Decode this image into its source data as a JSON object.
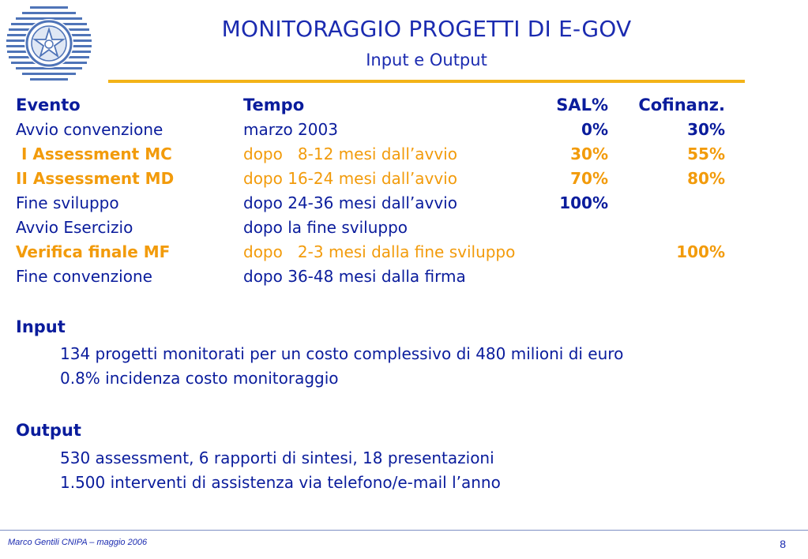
{
  "header": {
    "title": "MONITORAGGIO PROGETTI DI E-GOV",
    "subtitle": "Input e Output"
  },
  "table": {
    "headers": [
      "Evento",
      "Tempo",
      "SAL%",
      "Cofinanz."
    ],
    "rows": [
      {
        "evento": "Avvio convenzione",
        "tempo": "marzo  2003",
        "sal": "0%",
        "cofinanz": "30%",
        "style": "blue",
        "evento_bold": false
      },
      {
        "evento": " I Assessment MC",
        "tempo": "dopo   8-12 mesi dall’avvio",
        "sal": "30%",
        "cofinanz": "55%",
        "style": "orange",
        "evento_bold": true
      },
      {
        "evento": "II Assessment MD",
        "tempo": "dopo 16-24 mesi dall’avvio",
        "sal": "70%",
        "cofinanz": "80%",
        "style": "orange",
        "evento_bold": true
      },
      {
        "evento": "Fine sviluppo",
        "tempo": "dopo 24-36 mesi dall’avvio",
        "sal": "100%",
        "cofinanz": "",
        "style": "blue",
        "evento_bold": false
      },
      {
        "evento": "Avvio Esercizio",
        "tempo": "dopo la fine sviluppo",
        "sal": "",
        "cofinanz": "",
        "style": "blue",
        "evento_bold": false
      },
      {
        "evento": "Verifica finale MF",
        "tempo": "dopo   2-3 mesi dalla fine sviluppo",
        "sal": "",
        "cofinanz": "100%",
        "style": "orange",
        "evento_bold": true
      },
      {
        "evento": "Fine convenzione",
        "tempo": "dopo 36-48 mesi dalla firma",
        "sal": "",
        "cofinanz": "",
        "style": "blue",
        "evento_bold": false
      }
    ]
  },
  "input": {
    "heading": "Input",
    "lines": [
      "134 progetti monitorati per un costo complessivo di 480 milioni di euro",
      "0.8% incidenza costo monitoraggio"
    ]
  },
  "output": {
    "heading": "Output",
    "lines": [
      "530 assessment, 6 rapporti di sintesi, 18 presentazioni",
      "1.500 interventi di assistenza via telefono/e-mail l’anno"
    ]
  },
  "footer": {
    "author": "Marco Gentili CNIPA – maggio 2006",
    "page": "8"
  },
  "colors": {
    "blue": "#0a1c9c",
    "orange": "#f29b0b",
    "rule": "#f3b318"
  },
  "logo": {
    "icon": "italian-republic-emblem-icon"
  }
}
